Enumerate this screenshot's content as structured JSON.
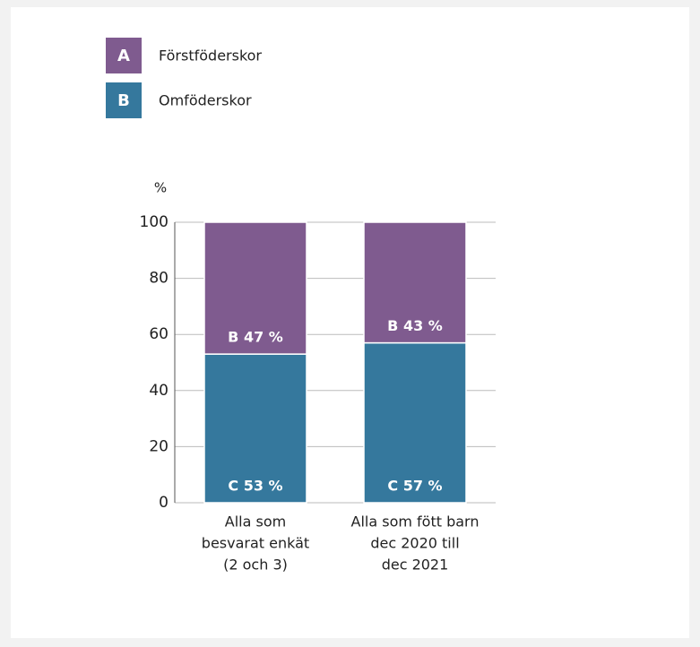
{
  "chart_data": {
    "type": "stacked-bar",
    "y_label": "%",
    "categories": [
      [
        "Alla som",
        "besvarat enkät",
        "(2 och 3)"
      ],
      [
        "Alla som fött barn",
        "dec 2020 till",
        "dec 2021"
      ]
    ],
    "series": [
      {
        "name": "Omföderskor",
        "key": "B",
        "color": "#35789d",
        "values": [
          53,
          57
        ],
        "value_labels": [
          "C 53 %",
          "C 57 %"
        ]
      },
      {
        "name": "Förstföderskor",
        "key": "A",
        "color": "#7f5b8f",
        "values": [
          47,
          43
        ],
        "value_labels": [
          "B 47 %",
          "B 43 %"
        ]
      }
    ],
    "ylim": [
      0,
      100
    ],
    "yticks": [
      0,
      20,
      40,
      60,
      80,
      100
    ],
    "grid": true
  }
}
